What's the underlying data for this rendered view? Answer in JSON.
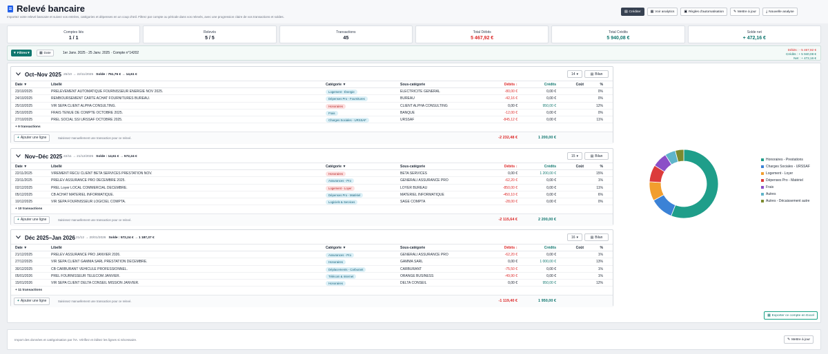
{
  "header": {
    "title": "Relevé bancaire",
    "subtitle": "Importez votre relevé bancaire et suivez vos entrées, catégories et dépenses en un coup d'œil. Filtrez par compte ou période dans vos relevés, avec une progression claire de vos transactions et soldes.",
    "toolbar": {
      "crediter": "Créditer",
      "analytics": "Voir analytics",
      "regles": "Règles d'automatisation",
      "maj": "Mettre à jour",
      "nouvelle": "Nouvelle analyse"
    }
  },
  "stats": [
    {
      "label": "Comptes liés",
      "value": "1 / 1"
    },
    {
      "label": "Relevés",
      "value": "5 / 5"
    },
    {
      "label": "Transactions",
      "value": "45"
    },
    {
      "label": "Total Débits",
      "value": "5 467,92 €"
    },
    {
      "label": "Total Crédits",
      "value": "5 940,08 €"
    },
    {
      "label": "Solde net",
      "value": "+ 472,16 €"
    }
  ],
  "filter": {
    "filtres": "Filtres",
    "date": "Date",
    "range": "1er Janv. 2025 - 25 Janv. 2025 · Compte n°14202",
    "debits": "Débits : - 5 467,92 €",
    "credits": "Crédits : + 5 940,08 €",
    "net": "Net : + 472,16 €"
  },
  "columns": {
    "date": "Date",
    "libelle": "Libellé",
    "categorie": "Catégorie",
    "sous": "Sous-catégorie",
    "debits": "Débits",
    "credits": "Crédits",
    "cout": "Coût",
    "pct": "%"
  },
  "sections": [
    {
      "name": "Oct–Nov 2025",
      "period": "25/10 → 22/11/2025",
      "solde_label": "Solde :",
      "solde": "751,76 € → 14,61 €",
      "count": "14",
      "bilan": "Bilan",
      "more": "+ 9 transactions",
      "add": "Ajouter une ligne",
      "hint": "Saisissez manuellement une transaction pour ce relevé.",
      "total_debit": "-2 232,48 €",
      "total_credit": "1 200,00 €",
      "rows": [
        {
          "date": "23/10/2025",
          "libelle": "PRELEVEMENT AUTOMATIQUE FOURNISSEUR ENERGIE NOV 2025.",
          "cat": "Logement - Énergie",
          "color": "teal",
          "sub": "ELECTRICITE GENERAL",
          "debit": "-80,00 €",
          "credit": "0,00 €",
          "pct": "0%"
        },
        {
          "date": "24/10/2025",
          "libelle": "REMBOURSEMENT CARTE ACHAT FOURNITURES BUREAU.",
          "cat": "Dépenses Pro - Fournitures",
          "color": "teal",
          "sub": "BUREAU",
          "debit": "-42,16 €",
          "credit": "0,00 €",
          "pct": "0%"
        },
        {
          "date": "25/10/2025",
          "libelle": "VIR SEPA CLIENT ALPHA CONSULTING.",
          "cat": "Honoraires",
          "color": "red",
          "sub": "CLIENT ALPHA CONSULTING",
          "debit": "0,00 €",
          "credit": "950,00 €",
          "pct": "12%"
        },
        {
          "date": "25/10/2025",
          "libelle": "FRAIS TENUE DE COMPTE OCTOBRE 2025.",
          "cat": "Frais",
          "color": "teal",
          "sub": "BANQUE",
          "debit": "-12,00 €",
          "credit": "0,00 €",
          "pct": "0%"
        },
        {
          "date": "27/10/2025",
          "libelle": "PREL SOCIAL SSI URSSAF OCTOBRE 2025.",
          "cat": "Charges Sociales - URSSAF",
          "color": "teal",
          "sub": "URSSAF",
          "debit": "-845,12 €",
          "credit": "0,00 €",
          "pct": "11%"
        }
      ]
    },
    {
      "name": "Nov–Déc 2025",
      "period": "22/11 → 21/12/2025",
      "solde_label": "Solde :",
      "solde": "14,61 € → 572,24 €",
      "count": "15",
      "bilan": "Bilan",
      "more": "+ 10 transactions",
      "add": "Ajouter une ligne",
      "hint": "Saisissez manuellement une transaction pour ce relevé.",
      "total_debit": "-2 115,64 €",
      "total_credit": "2 200,00 €",
      "rows": [
        {
          "date": "22/11/2025",
          "libelle": "VIREMENT RECU CLIENT BETA SERVICES PRESTATION NOV.",
          "cat": "Honoraires",
          "color": "red",
          "sub": "BETA SERVICES",
          "debit": "0,00 €",
          "credit": "1 200,00 €",
          "pct": "15%"
        },
        {
          "date": "23/11/2025",
          "libelle": "PRELEV ASSURANCE PRO DECEMBRE 2025.",
          "cat": "Assurances - Pro",
          "color": "teal",
          "sub": "GENERALI ASSURANCE PRO",
          "debit": "-62,20 €",
          "credit": "0,00 €",
          "pct": "1%"
        },
        {
          "date": "02/12/2025",
          "libelle": "PREL Loyer LOCAL COMMERCIAL DECEMBRE.",
          "cat": "Logement - Loyer",
          "color": "red",
          "sub": "LOYER BUREAU",
          "debit": "-850,00 €",
          "credit": "0,00 €",
          "pct": "11%"
        },
        {
          "date": "05/12/2025",
          "libelle": "CB ACHAT MATERIEL INFORMATIQUE.",
          "cat": "Dépenses Pro - Matériel",
          "color": "teal",
          "sub": "MATERIEL INFORMATIQUE",
          "debit": "-450,10 €",
          "credit": "0,00 €",
          "pct": "6%"
        },
        {
          "date": "10/12/2025",
          "libelle": "VIR SEPA FOURNISSEUR LOGICIEL COMPTA.",
          "cat": "Logiciels & Services",
          "color": "teal",
          "sub": "SAGE COMPTA",
          "debit": "-28,00 €",
          "credit": "0,00 €",
          "pct": "0%"
        }
      ]
    },
    {
      "name": "Déc 2025–Jan 2026",
      "period": "21/12 → 20/01/2026",
      "solde_label": "Solde :",
      "solde": "572,24 € → 1 187,37 €",
      "count": "16",
      "bilan": "Bilan",
      "more": "+ 11 transactions",
      "add": "Ajouter une ligne",
      "hint": "Saisissez manuellement une transaction pour ce relevé.",
      "total_debit": "-1 119,40 €",
      "total_credit": "1 950,00 €",
      "rows": [
        {
          "date": "21/12/2025",
          "libelle": "PRELEV ASSURANCE PRO JANVIER 2026.",
          "cat": "Assurances - Pro",
          "color": "teal",
          "sub": "GENERALI ASSURANCE PRO",
          "debit": "-62,20 €",
          "credit": "0,00 €",
          "pct": "1%"
        },
        {
          "date": "27/12/2025",
          "libelle": "VIR SEPA CLIENT GAMMA SARL PRESTATION DECEMBRE.",
          "cat": "Honoraires",
          "color": "teal",
          "sub": "GAMMA SARL",
          "debit": "0,00 €",
          "credit": "1 000,00 €",
          "pct": "13%"
        },
        {
          "date": "30/12/2025",
          "libelle": "CB CARBURANT VEHICULE PROFESSIONNEL.",
          "cat": "Déplacements - Carburant",
          "color": "teal",
          "sub": "CARBURANT",
          "debit": "-75,50 €",
          "credit": "0,00 €",
          "pct": "1%"
        },
        {
          "date": "05/01/2026",
          "libelle": "PREL FOURNISSEUR TELECOM JANVIER.",
          "cat": "Télécom & Internet",
          "color": "teal",
          "sub": "ORANGE BUSINESS",
          "debit": "-49,90 €",
          "credit": "0,00 €",
          "pct": "1%"
        },
        {
          "date": "15/01/2026",
          "libelle": "VIR SEPA CLIENT DELTA CONSEIL MISSION JANVIER.",
          "cat": "Honoraires",
          "color": "teal",
          "sub": "DELTA CONSEIL",
          "debit": "0,00 €",
          "credit": "950,00 €",
          "pct": "12%"
        }
      ]
    }
  ],
  "chart_data": {
    "type": "pie",
    "donut": true,
    "legend_position": "right",
    "series": [
      {
        "name": "Honoraires - Prestations",
        "value": 56,
        "color": "#1f9e8a"
      },
      {
        "name": "Charges Sociales - URSSAF",
        "value": 11,
        "color": "#3b82d6"
      },
      {
        "name": "Logement - Loyer",
        "value": 9,
        "color": "#f29e2e"
      },
      {
        "name": "Dépenses Pro - Matériel",
        "value": 8,
        "color": "#dc3b3b"
      },
      {
        "name": "Frais",
        "value": 7,
        "color": "#8b4fc7"
      },
      {
        "name": "Autres",
        "value": 5,
        "color": "#5fb4c9"
      },
      {
        "name": "Autres - Décaissement autre",
        "value": 4,
        "color": "#7c8a2e"
      }
    ]
  },
  "footer": {
    "export": "Exporter ce compte en Excel",
    "note": "Import des données et catégorisation par l'IA. Vérifiez et éditez les lignes si nécessaire.",
    "maj": "Mettre à jour"
  }
}
